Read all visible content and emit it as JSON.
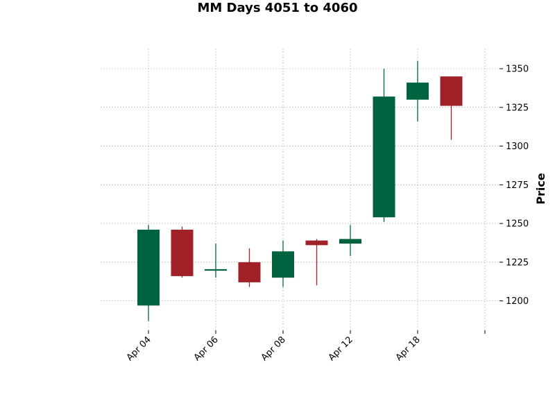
{
  "chart_data": {
    "type": "candlestick",
    "title": "MM Days 4051 to 4060",
    "ylabel": "Price",
    "xlabel": "",
    "ylim": [
      1181,
      1363
    ],
    "yticks": [
      1200,
      1225,
      1250,
      1275,
      1300,
      1325,
      1350
    ],
    "xtick_labels": [
      {
        "index": 0,
        "label": "Apr 04"
      },
      {
        "index": 2,
        "label": "Apr 06"
      },
      {
        "index": 4,
        "label": "Apr 08"
      },
      {
        "index": 6,
        "label": "Apr 12"
      },
      {
        "index": 8,
        "label": "Apr 18"
      },
      {
        "index": 10,
        "label": ""
      }
    ],
    "grid": true,
    "colors": {
      "up": "#006340",
      "down": "#a02128",
      "grid": "#a9a9a9"
    },
    "candles": [
      {
        "open": 1197,
        "high": 1249,
        "low": 1187,
        "close": 1246
      },
      {
        "open": 1246,
        "high": 1248,
        "low": 1215,
        "close": 1216
      },
      {
        "open": 1219.5,
        "high": 1237,
        "low": 1215,
        "close": 1220.5
      },
      {
        "open": 1225,
        "high": 1234,
        "low": 1209,
        "close": 1212
      },
      {
        "open": 1215,
        "high": 1239,
        "low": 1209,
        "close": 1232
      },
      {
        "open": 1239,
        "high": 1240,
        "low": 1210,
        "close": 1236
      },
      {
        "open": 1237,
        "high": 1249,
        "low": 1229,
        "close": 1240
      },
      {
        "open": 1254,
        "high": 1350,
        "low": 1251,
        "close": 1332
      },
      {
        "open": 1330,
        "high": 1355,
        "low": 1316,
        "close": 1341
      },
      {
        "open": 1345,
        "high": 1345,
        "low": 1304,
        "close": 1326
      }
    ]
  }
}
